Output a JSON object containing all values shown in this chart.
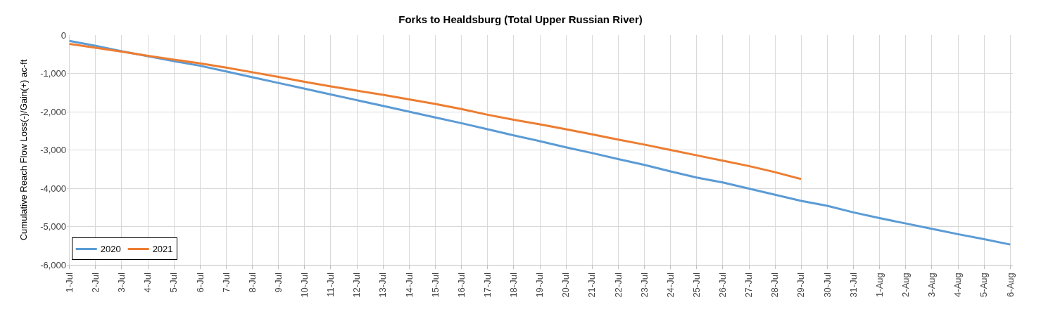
{
  "chart_data": {
    "type": "line",
    "title": "Forks to Healdsburg (Total Upper Russian River)",
    "ylabel": "Cumulative Reach Flow Loss(-)/Gain(+) ac-ft",
    "categories": [
      "1-Jul",
      "2-Jul",
      "3-Jul",
      "4-Jul",
      "5-Jul",
      "6-Jul",
      "7-Jul",
      "8-Jul",
      "9-Jul",
      "10-Jul",
      "11-Jul",
      "12-Jul",
      "13-Jul",
      "14-Jul",
      "15-Jul",
      "16-Jul",
      "17-Jul",
      "18-Jul",
      "19-Jul",
      "20-Jul",
      "21-Jul",
      "22-Jul",
      "23-Jul",
      "24-Jul",
      "25-Jul",
      "26-Jul",
      "27-Jul",
      "28-Jul",
      "29-Jul",
      "30-Jul",
      "31-Jul",
      "1-Aug",
      "2-Aug",
      "3-Aug",
      "4-Aug",
      "5-Aug",
      "6-Aug"
    ],
    "series": [
      {
        "name": "2020",
        "color": "#5b9bd5",
        "values": [
          -150,
          -280,
          -420,
          -550,
          -680,
          -800,
          -950,
          -1100,
          -1250,
          -1400,
          -1550,
          -1700,
          -1850,
          -2000,
          -2150,
          -2300,
          -2460,
          -2620,
          -2770,
          -2930,
          -3080,
          -3240,
          -3390,
          -3560,
          -3720,
          -3850,
          -4010,
          -4170,
          -4330,
          -4460,
          -4630,
          -4780,
          -4920,
          -5060,
          -5200,
          -5330,
          -5470
        ]
      },
      {
        "name": "2021",
        "color": "#ed7d31",
        "values": [
          -230,
          -330,
          -430,
          -540,
          -640,
          -740,
          -850,
          -970,
          -1090,
          -1220,
          -1340,
          -1450,
          -1560,
          -1680,
          -1800,
          -1930,
          -2080,
          -2210,
          -2330,
          -2460,
          -2590,
          -2730,
          -2860,
          -3000,
          -3140,
          -3280,
          -3420,
          -3580,
          -3760,
          null,
          null,
          null,
          null,
          null,
          null,
          null,
          null
        ]
      }
    ],
    "ylim": [
      -6000,
      0
    ],
    "yticks": [
      {
        "value": -6000,
        "label": "-6,000"
      },
      {
        "value": -5000,
        "label": "-5,000"
      },
      {
        "value": -4000,
        "label": "-4,000"
      },
      {
        "value": -3000,
        "label": "-3,000"
      },
      {
        "value": -2000,
        "label": "-2,000"
      },
      {
        "value": -1000,
        "label": "-1,000"
      },
      0
    ],
    "grid": true,
    "legend": "bottom left",
    "marker": "none",
    "line_style": "solid"
  }
}
